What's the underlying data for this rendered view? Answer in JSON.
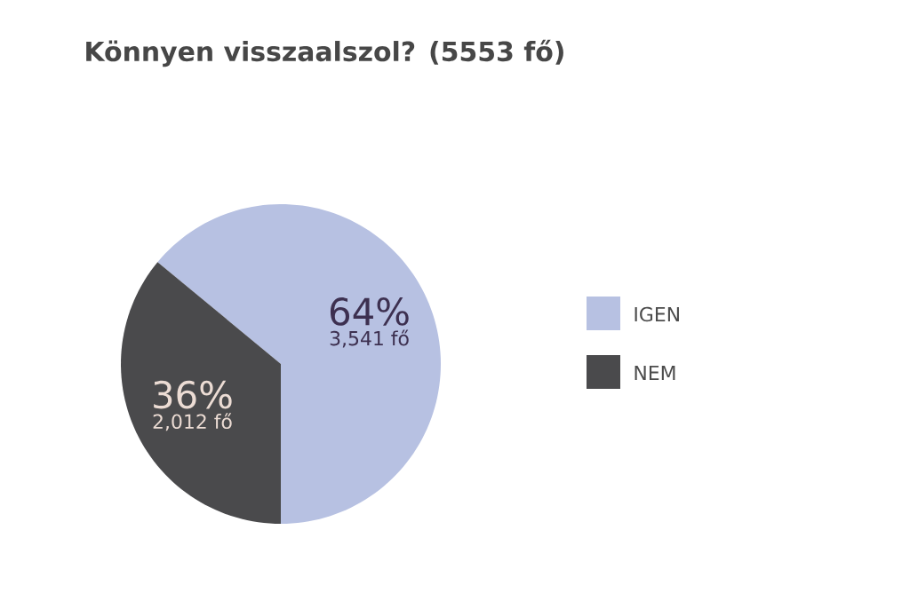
{
  "chart_data": {
    "type": "pie",
    "title": "Könnyen visszaalszol? (5553 fő)",
    "categories": [
      "IGEN",
      "NEM"
    ],
    "values": [
      64,
      36
    ],
    "colors": [
      "#b7c1e2",
      "#4a4a4c"
    ],
    "value_labels": [
      "64%",
      "36%"
    ],
    "annotations": [
      "3,541 fő",
      "2,012 fő"
    ],
    "legend": "right"
  }
}
